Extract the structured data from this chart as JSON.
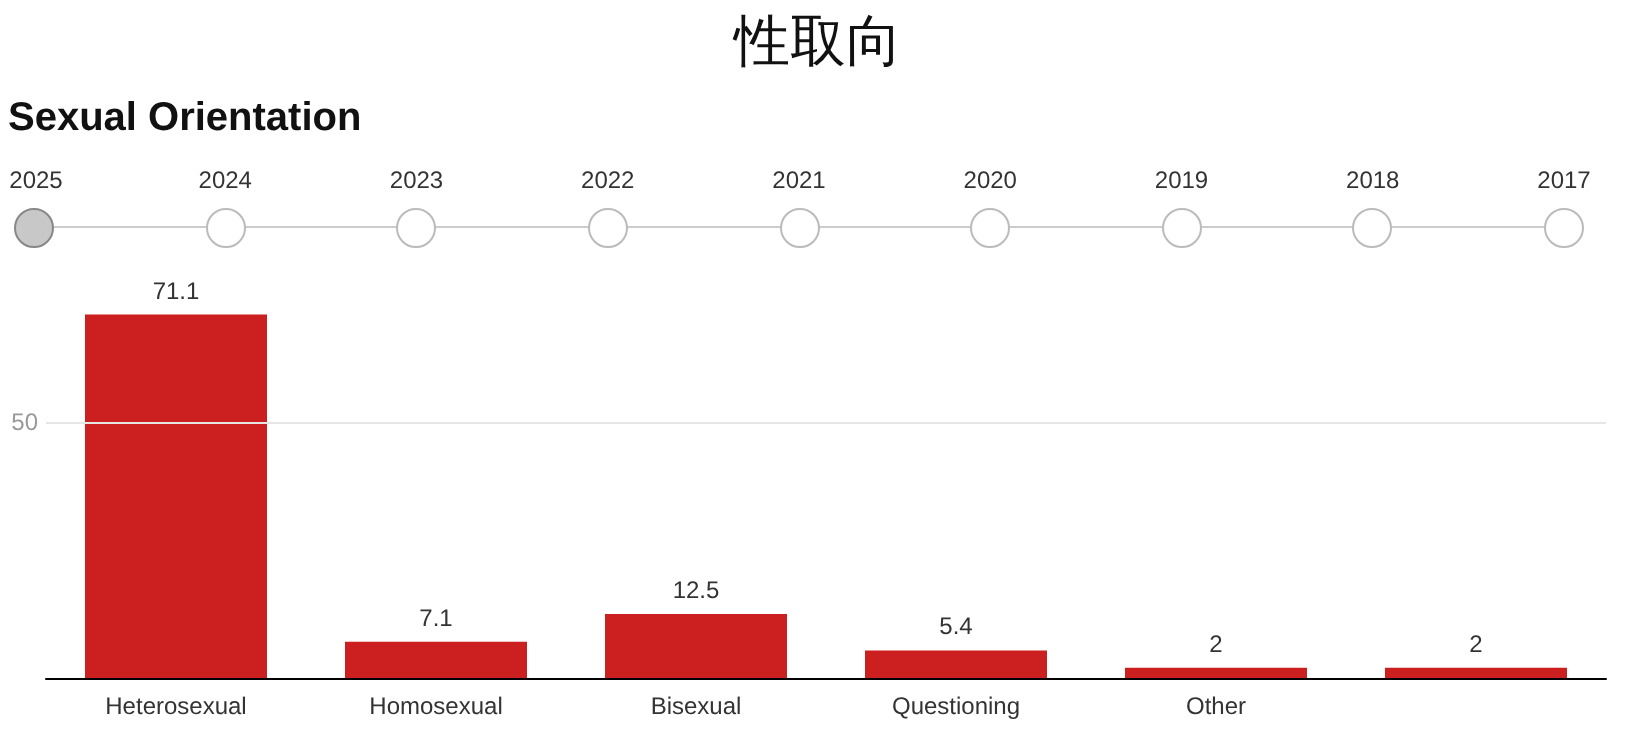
{
  "chart_data": {
    "type": "bar",
    "title": "性取向",
    "subtitle": "Sexual Orientation",
    "annotations": [
      "2025",
      "2024",
      "2023",
      "2022",
      "2021",
      "2020",
      "2019",
      "2018",
      "2017"
    ],
    "categories": [
      "Heterosexual",
      "Homosexual",
      "Bisexual",
      "Questioning",
      "Other",
      null
    ],
    "values": [
      71.1,
      7.1,
      12.5,
      5.4,
      2,
      2
    ],
    "color": "#cc1f1f",
    "ref_lines": [
      {
        "axis": "y",
        "value": 50,
        "label": "50",
        "color": "#e6e6e6"
      }
    ],
    "data_labels": true
  }
}
